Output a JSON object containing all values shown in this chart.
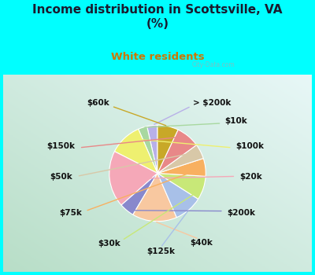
{
  "title": "Income distribution in Scottsville, VA\n(%)",
  "subtitle": "White residents",
  "title_color": "#1a1a2e",
  "subtitle_color": "#cc7700",
  "background_outer": "#00ffff",
  "background_chart": "#d8ede0",
  "labels": [
    "> $200k",
    "$10k",
    "$100k",
    "$20k",
    "$200k",
    "$40k",
    "$125k",
    "$30k",
    "$75k",
    "$50k",
    "$150k",
    "$60k"
  ],
  "sizes": [
    3.5,
    3.0,
    11.0,
    19.0,
    5.0,
    15.0,
    9.5,
    8.0,
    6.0,
    5.0,
    8.0,
    7.0
  ],
  "colors": [
    "#b8b0e8",
    "#a8d8a0",
    "#eef070",
    "#f5a8b8",
    "#8888cc",
    "#f8c8a0",
    "#a8c0e8",
    "#c8e878",
    "#f8b060",
    "#d8c8a8",
    "#e88888",
    "#c8a828"
  ],
  "startangle": 90,
  "figsize": [
    4.0,
    3.5
  ],
  "dpi": 100
}
